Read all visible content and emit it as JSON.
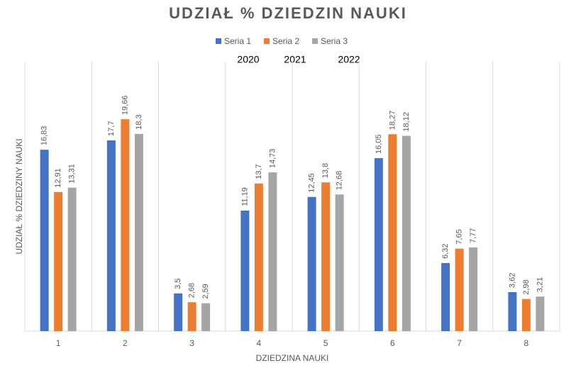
{
  "chart_data": {
    "type": "bar",
    "title": "UDZIAŁ % DZIEDZIN NAUKI",
    "x_label": "DZIEDZINA NAUKI",
    "y_label": "UDZIAŁ % DZIEDZINY NAUKI",
    "annotations": [
      "2020",
      "2021",
      "2022"
    ],
    "categories": [
      "1",
      "2",
      "3",
      "4",
      "5",
      "6",
      "7",
      "8"
    ],
    "series": [
      {
        "name": "Seria 1",
        "color": "#4472c4",
        "values": [
          16.83,
          17.7,
          3.5,
          11.19,
          12.45,
          16.05,
          6.32,
          3.62
        ],
        "value_labels": [
          "16,83",
          "17,7",
          "3,5",
          "11,19",
          "12,45",
          "16,05",
          "6,32",
          "3,62"
        ]
      },
      {
        "name": "Seria 2",
        "color": "#ed7d31",
        "values": [
          12.91,
          19.66,
          2.68,
          13.7,
          13.8,
          18.27,
          7.65,
          2.98
        ],
        "value_labels": [
          "12,91",
          "19,66",
          "2,68",
          "13,7",
          "13,8",
          "18,27",
          "7,65",
          "2,98"
        ]
      },
      {
        "name": "Seria 3",
        "color": "#a5a5a5",
        "values": [
          13.31,
          18.3,
          2.59,
          14.73,
          12.68,
          18.12,
          7.77,
          3.21
        ],
        "value_labels": [
          "13,31",
          "18,3",
          "2,59",
          "14,73",
          "12,68",
          "18,12",
          "7,77",
          "3,21"
        ]
      }
    ],
    "ylim": [
      0,
      25
    ],
    "legend": "top"
  }
}
